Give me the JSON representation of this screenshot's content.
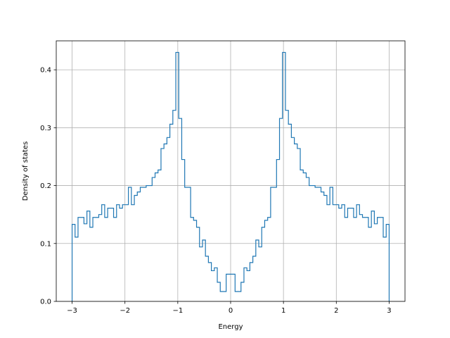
{
  "chart_data": {
    "type": "histogram-step",
    "title": "",
    "xlabel": "Energy",
    "ylabel": "Density of states",
    "xlim": [
      -3.3,
      3.3
    ],
    "ylim": [
      0.0,
      0.45
    ],
    "xticks": [
      -3,
      -2,
      -1,
      0,
      1,
      2,
      3
    ],
    "xtick_labels": [
      "−3",
      "−2",
      "−1",
      "0",
      "1",
      "2",
      "3"
    ],
    "yticks": [
      0.0,
      0.1,
      0.2,
      0.3,
      0.4
    ],
    "ytick_labels": [
      "0.0",
      "0.1",
      "0.2",
      "0.3",
      "0.4"
    ],
    "grid": true,
    "series": [
      {
        "color": "#1f77b4",
        "bin_range": [
          -3,
          3
        ],
        "values": [
          0.133,
          0.111,
          0.145,
          0.145,
          0.134,
          0.156,
          0.128,
          0.145,
          0.145,
          0.15,
          0.167,
          0.145,
          0.161,
          0.161,
          0.145,
          0.167,
          0.161,
          0.167,
          0.167,
          0.197,
          0.167,
          0.183,
          0.189,
          0.197,
          0.197,
          0.2,
          0.2,
          0.214,
          0.222,
          0.227,
          0.264,
          0.272,
          0.283,
          0.306,
          0.33,
          0.43,
          0.316,
          0.245,
          0.197,
          0.197,
          0.145,
          0.14,
          0.128,
          0.094,
          0.106,
          0.078,
          0.067,
          0.053,
          0.058,
          0.033,
          0.017,
          0.017,
          0.047,
          0.047,
          0.047,
          0.017,
          0.017,
          0.033,
          0.058,
          0.053,
          0.067,
          0.078,
          0.106,
          0.094,
          0.128,
          0.14,
          0.145,
          0.197,
          0.197,
          0.245,
          0.316,
          0.43,
          0.33,
          0.306,
          0.283,
          0.272,
          0.264,
          0.227,
          0.222,
          0.214,
          0.2,
          0.2,
          0.197,
          0.197,
          0.189,
          0.183,
          0.167,
          0.197,
          0.167,
          0.167,
          0.161,
          0.167,
          0.145,
          0.161,
          0.161,
          0.145,
          0.167,
          0.15,
          0.145,
          0.145,
          0.128,
          0.156,
          0.134,
          0.145,
          0.145,
          0.111,
          0.133
        ]
      }
    ]
  }
}
